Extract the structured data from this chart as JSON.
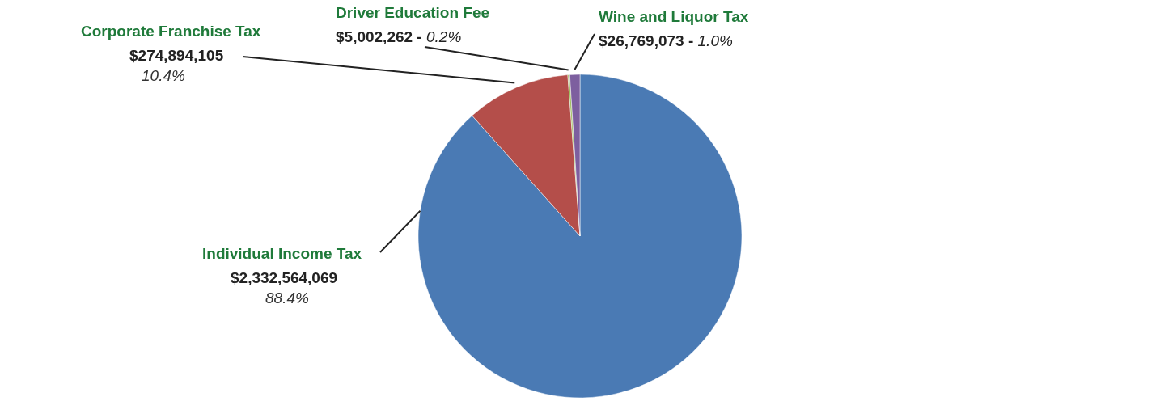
{
  "chart_data": {
    "type": "pie",
    "categories": [
      "Individual Income Tax",
      "Corporate Franchise Tax",
      "Driver Education Fee",
      "Wine and Liquor Tax"
    ],
    "values": [
      2332564069,
      274894105,
      5002262,
      26769073
    ],
    "colors": [
      "#4a7ab4",
      "#b44e4a",
      "#9bbb59",
      "#7d5f9f"
    ],
    "value_labels": [
      "$2,332,564,069",
      "$274,894,105",
      "$5,002,262 -",
      "$26,769,073 -"
    ],
    "annotations": [
      {
        "text": "88.4%",
        "x": "Individual Income Tax"
      },
      {
        "text": "10.4%",
        "x": "Corporate Franchise Tax"
      },
      {
        "text": "0.2%",
        "x": "Driver Education Fee"
      },
      {
        "text": "1.0%",
        "x": "Wine and Liquor Tax"
      }
    ]
  }
}
